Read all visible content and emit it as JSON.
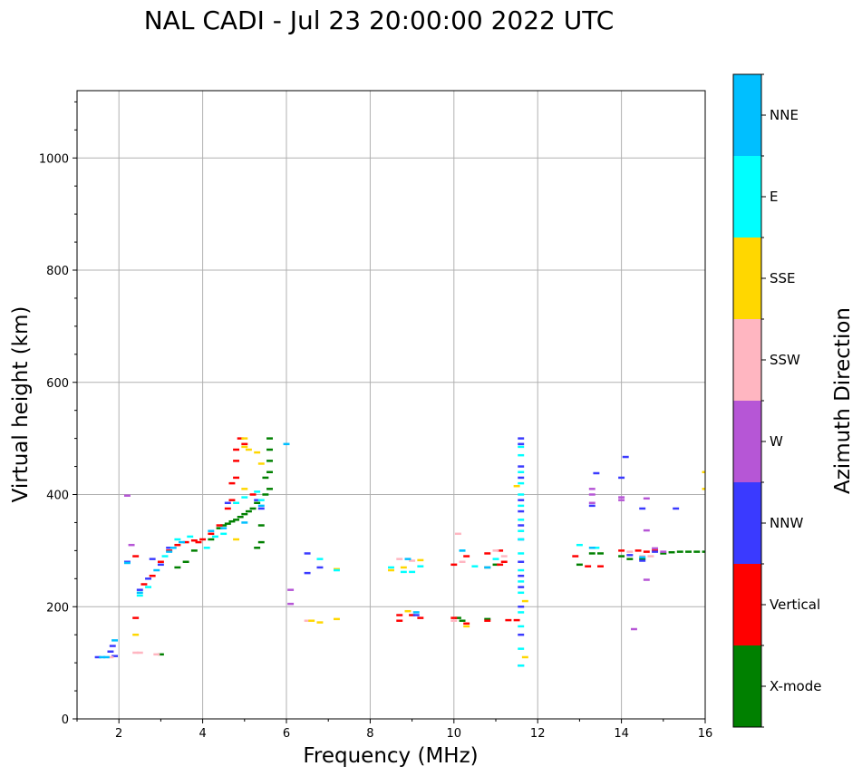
{
  "chart_data": {
    "type": "scatter",
    "title": "NAL CADI - Jul 23 20:00:00 2022 UTC",
    "xlabel": "Frequency (MHz)",
    "ylabel": "Virtual height (km)",
    "xlim": [
      1,
      16
    ],
    "ylim": [
      0,
      1120
    ],
    "xticks": [
      2,
      4,
      6,
      8,
      10,
      12,
      14,
      16
    ],
    "yticks": [
      0,
      200,
      400,
      600,
      800,
      1000
    ],
    "grid": true,
    "colorbar": {
      "title": "Azimuth Direction",
      "categories": [
        {
          "name": "X-mode",
          "color": "#008000"
        },
        {
          "name": "Vertical",
          "color": "#ff0000"
        },
        {
          "name": "NNW",
          "color": "#3a3aff"
        },
        {
          "name": "W",
          "color": "#b656d6"
        },
        {
          "name": "SSW",
          "color": "#ffb6c1"
        },
        {
          "name": "SSE",
          "color": "#ffd700"
        },
        {
          "name": "E",
          "color": "#00ffff"
        },
        {
          "name": "NNE",
          "color": "#00bfff"
        }
      ]
    },
    "series": [
      {
        "name": "X-mode",
        "points": [
          [
            3.0,
            115
          ],
          [
            3.4,
            270
          ],
          [
            3.6,
            280
          ],
          [
            3.8,
            300
          ],
          [
            4.2,
            320
          ],
          [
            4.4,
            340
          ],
          [
            4.5,
            345
          ],
          [
            4.6,
            348
          ],
          [
            4.7,
            352
          ],
          [
            4.8,
            355
          ],
          [
            4.9,
            360
          ],
          [
            5.0,
            365
          ],
          [
            5.1,
            370
          ],
          [
            5.2,
            375
          ],
          [
            5.3,
            385
          ],
          [
            5.3,
            305
          ],
          [
            5.4,
            315
          ],
          [
            5.4,
            345
          ],
          [
            5.5,
            400
          ],
          [
            5.5,
            430
          ],
          [
            5.6,
            410
          ],
          [
            5.6,
            440
          ],
          [
            5.6,
            460
          ],
          [
            5.6,
            480
          ],
          [
            5.6,
            500
          ],
          [
            10.1,
            180
          ],
          [
            10.2,
            175
          ],
          [
            10.8,
            178
          ],
          [
            10.8,
            270
          ],
          [
            11.0,
            275
          ],
          [
            13.0,
            275
          ],
          [
            13.3,
            295
          ],
          [
            13.5,
            295
          ],
          [
            14.0,
            290
          ],
          [
            14.2,
            285
          ],
          [
            14.5,
            285
          ],
          [
            15.0,
            295
          ],
          [
            15.2,
            297
          ],
          [
            15.4,
            298
          ],
          [
            15.6,
            298
          ],
          [
            15.8,
            298
          ],
          [
            16.0,
            298
          ]
        ]
      },
      {
        "name": "Vertical",
        "points": [
          [
            2.4,
            180
          ],
          [
            2.4,
            290
          ],
          [
            2.6,
            240
          ],
          [
            2.8,
            255
          ],
          [
            3.0,
            280
          ],
          [
            3.2,
            300
          ],
          [
            3.4,
            310
          ],
          [
            3.6,
            315
          ],
          [
            3.8,
            318
          ],
          [
            3.9,
            315
          ],
          [
            4.0,
            320
          ],
          [
            4.2,
            330
          ],
          [
            4.4,
            345
          ],
          [
            4.6,
            375
          ],
          [
            4.7,
            390
          ],
          [
            4.7,
            420
          ],
          [
            4.8,
            430
          ],
          [
            4.8,
            460
          ],
          [
            4.8,
            480
          ],
          [
            4.9,
            500
          ],
          [
            5.0,
            490
          ],
          [
            5.2,
            400
          ],
          [
            8.7,
            175
          ],
          [
            8.7,
            185
          ],
          [
            9.0,
            185
          ],
          [
            9.2,
            180
          ],
          [
            10.0,
            180
          ],
          [
            10.0,
            275
          ],
          [
            10.3,
            170
          ],
          [
            10.3,
            290
          ],
          [
            10.8,
            175
          ],
          [
            10.8,
            295
          ],
          [
            11.1,
            300
          ],
          [
            11.1,
            275
          ],
          [
            11.2,
            280
          ],
          [
            11.3,
            176
          ],
          [
            11.5,
            176
          ],
          [
            12.9,
            290
          ],
          [
            13.2,
            272
          ],
          [
            13.5,
            272
          ],
          [
            14.0,
            300
          ],
          [
            14.4,
            300
          ],
          [
            14.6,
            298
          ],
          [
            14.8,
            300
          ]
        ]
      },
      {
        "name": "NNW",
        "points": [
          [
            1.5,
            110
          ],
          [
            1.8,
            120
          ],
          [
            1.85,
            130
          ],
          [
            1.9,
            112
          ],
          [
            2.2,
            280
          ],
          [
            2.5,
            230
          ],
          [
            2.7,
            250
          ],
          [
            2.8,
            285
          ],
          [
            3.0,
            275
          ],
          [
            3.2,
            305
          ],
          [
            4.6,
            385
          ],
          [
            5.3,
            390
          ],
          [
            5.4,
            375
          ],
          [
            6.5,
            295
          ],
          [
            6.5,
            260
          ],
          [
            6.8,
            270
          ],
          [
            9.1,
            185
          ],
          [
            11.6,
            95
          ],
          [
            11.6,
            150
          ],
          [
            11.6,
            200
          ],
          [
            11.6,
            235
          ],
          [
            11.6,
            255
          ],
          [
            11.6,
            280
          ],
          [
            11.6,
            320
          ],
          [
            11.6,
            345
          ],
          [
            11.6,
            370
          ],
          [
            11.6,
            390
          ],
          [
            11.6,
            430
          ],
          [
            11.6,
            450
          ],
          [
            11.6,
            490
          ],
          [
            11.6,
            500
          ],
          [
            13.3,
            380
          ],
          [
            13.4,
            438
          ],
          [
            14.0,
            430
          ],
          [
            14.1,
            467
          ],
          [
            14.2,
            292
          ],
          [
            14.5,
            282
          ],
          [
            14.5,
            375
          ],
          [
            14.8,
            298
          ],
          [
            15.3,
            375
          ]
        ]
      },
      {
        "name": "W",
        "points": [
          [
            2.2,
            398
          ],
          [
            2.3,
            310
          ],
          [
            6.1,
            230
          ],
          [
            6.1,
            205
          ],
          [
            13.3,
            385
          ],
          [
            13.3,
            400
          ],
          [
            13.3,
            410
          ],
          [
            14.0,
            390
          ],
          [
            14.0,
            395
          ],
          [
            14.3,
            160
          ],
          [
            14.6,
            248
          ],
          [
            14.6,
            336
          ],
          [
            14.6,
            393
          ],
          [
            14.8,
            304
          ],
          [
            15.0,
            298
          ]
        ]
      },
      {
        "name": "SSW",
        "points": [
          [
            1.8,
            110
          ],
          [
            2.4,
            118
          ],
          [
            2.5,
            118
          ],
          [
            2.9,
            115
          ],
          [
            6.5,
            175
          ],
          [
            8.7,
            285
          ],
          [
            9.0,
            282
          ],
          [
            10.0,
            175
          ],
          [
            10.1,
            330
          ],
          [
            10.2,
            280
          ],
          [
            10.8,
            270
          ],
          [
            11.0,
            300
          ],
          [
            11.2,
            290
          ],
          [
            14.2,
            298
          ],
          [
            14.5,
            290
          ],
          [
            14.7,
            290
          ]
        ]
      },
      {
        "name": "SSE",
        "points": [
          [
            2.4,
            150
          ],
          [
            4.8,
            320
          ],
          [
            5.0,
            410
          ],
          [
            5.0,
            500
          ],
          [
            5.0,
            485
          ],
          [
            5.1,
            480
          ],
          [
            5.3,
            475
          ],
          [
            5.4,
            455
          ],
          [
            6.6,
            175
          ],
          [
            6.8,
            172
          ],
          [
            7.2,
            178
          ],
          [
            7.2,
            267
          ],
          [
            8.5,
            265
          ],
          [
            8.8,
            270
          ],
          [
            8.9,
            192
          ],
          [
            9.2,
            283
          ],
          [
            10.3,
            165
          ],
          [
            11.5,
            415
          ],
          [
            11.7,
            210
          ],
          [
            11.7,
            110
          ],
          [
            16.0,
            410
          ],
          [
            16.0,
            440
          ]
        ]
      },
      {
        "name": "E",
        "points": [
          [
            2.5,
            220
          ],
          [
            2.7,
            235
          ],
          [
            3.1,
            290
          ],
          [
            3.4,
            320
          ],
          [
            3.7,
            325
          ],
          [
            4.1,
            305
          ],
          [
            4.3,
            325
          ],
          [
            4.5,
            330
          ],
          [
            4.8,
            385
          ],
          [
            5.0,
            395
          ],
          [
            5.3,
            405
          ],
          [
            5.4,
            390
          ],
          [
            6.8,
            285
          ],
          [
            7.2,
            265
          ],
          [
            8.5,
            270
          ],
          [
            8.8,
            262
          ],
          [
            9.0,
            262
          ],
          [
            9.2,
            272
          ],
          [
            10.2,
            300
          ],
          [
            10.5,
            272
          ],
          [
            11.0,
            285
          ],
          [
            11.6,
            95
          ],
          [
            11.6,
            125
          ],
          [
            11.6,
            165
          ],
          [
            11.6,
            190
          ],
          [
            11.6,
            225
          ],
          [
            11.6,
            245
          ],
          [
            11.6,
            265
          ],
          [
            11.6,
            295
          ],
          [
            11.6,
            320
          ],
          [
            11.6,
            335
          ],
          [
            11.6,
            355
          ],
          [
            11.6,
            380
          ],
          [
            11.6,
            400
          ],
          [
            11.6,
            420
          ],
          [
            11.6,
            440
          ],
          [
            11.6,
            470
          ],
          [
            11.6,
            485
          ],
          [
            13.0,
            310
          ],
          [
            13.4,
            305
          ]
        ]
      },
      {
        "name": "NNE",
        "points": [
          [
            1.6,
            110
          ],
          [
            1.7,
            110
          ],
          [
            1.9,
            140
          ],
          [
            2.2,
            278
          ],
          [
            2.5,
            225
          ],
          [
            2.9,
            265
          ],
          [
            3.2,
            298
          ],
          [
            3.3,
            305
          ],
          [
            3.5,
            315
          ],
          [
            4.2,
            335
          ],
          [
            4.5,
            340
          ],
          [
            5.0,
            350
          ],
          [
            5.4,
            380
          ],
          [
            6.0,
            490
          ],
          [
            8.9,
            285
          ],
          [
            9.1,
            190
          ],
          [
            10.2,
            300
          ],
          [
            10.8,
            270
          ],
          [
            13.3,
            305
          ],
          [
            14.5,
            288
          ]
        ]
      }
    ]
  }
}
